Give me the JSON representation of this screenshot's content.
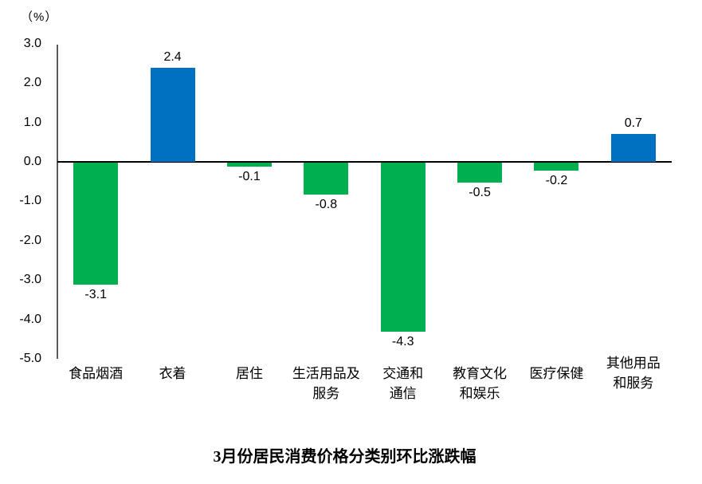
{
  "chart_data": {
    "type": "bar",
    "title": "3月份居民消费价格分类别环比涨跌幅",
    "unit_label": "（%）",
    "categories": [
      "食品烟酒",
      "衣着",
      "居住",
      "生活用品及\n服务",
      "交通和\n通信",
      "教育文化\n和娱乐",
      "医疗保健",
      "其他用品\n和服务"
    ],
    "values": [
      -3.1,
      2.4,
      -0.1,
      -0.8,
      -4.3,
      -0.5,
      -0.2,
      0.7
    ],
    "bar_labels": [
      "-3.1",
      "2.4",
      "-0.1",
      "-0.8",
      "-4.3",
      "-0.5",
      "-0.2",
      "0.7"
    ],
    "ylim": [
      -5.0,
      3.0
    ],
    "ytick_step": 1.0,
    "yticks": [
      "3.0",
      "2.0",
      "1.0",
      "0.0",
      "-1.0",
      "-2.0",
      "-3.0",
      "-4.0",
      "-5.0"
    ],
    "grid": false,
    "legend_position": "none",
    "colors": {
      "positive_bar": "#0070C0",
      "negative_bar": "#00B050",
      "axis_line": "#595959",
      "zero_line": "#000000",
      "text": "#000000"
    }
  }
}
